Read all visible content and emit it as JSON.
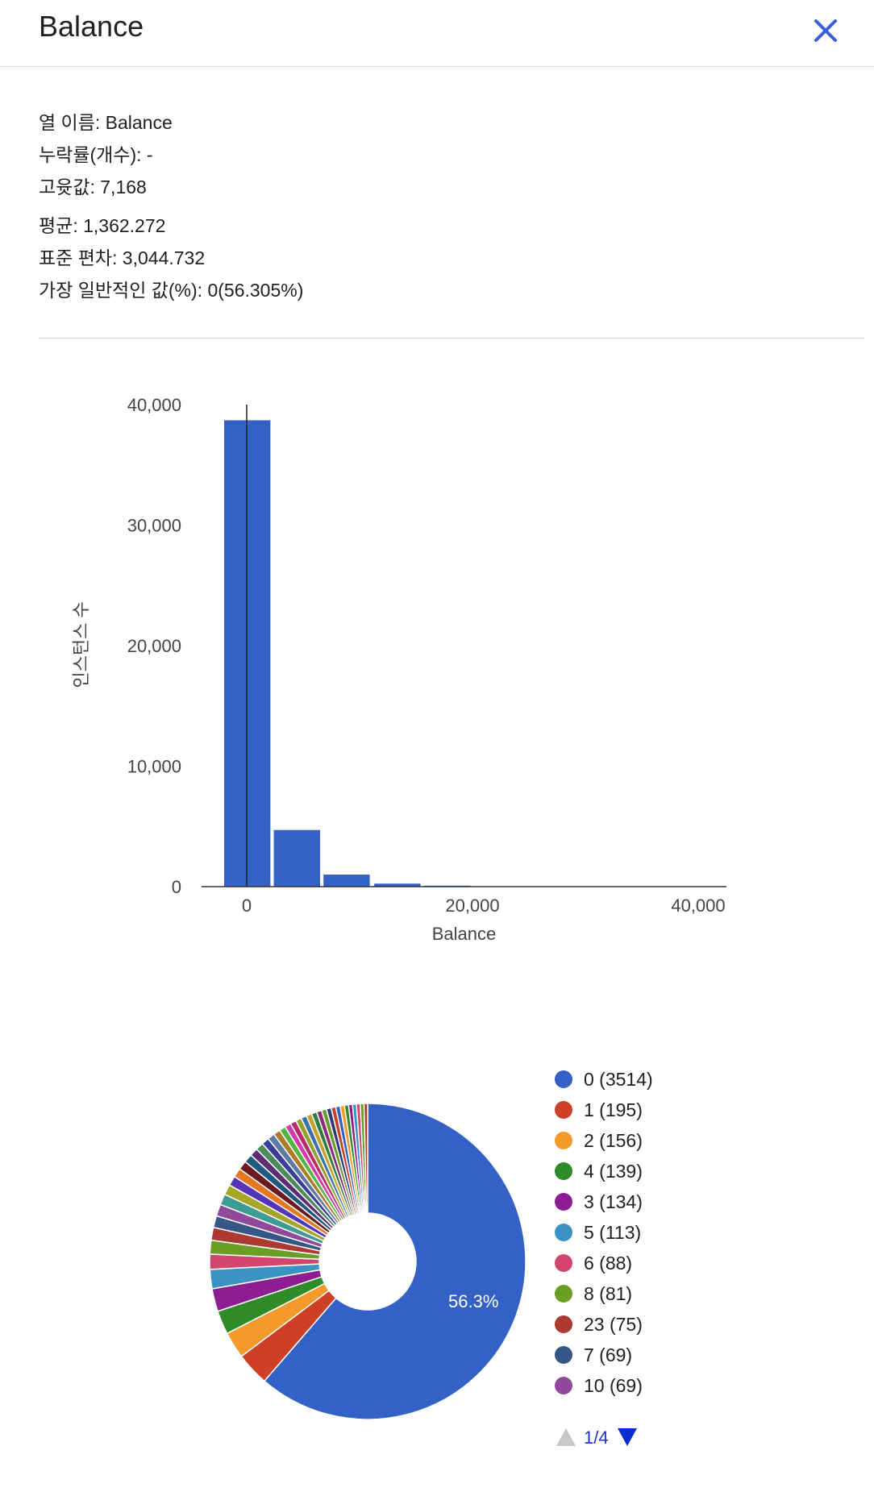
{
  "header": {
    "title": "Balance"
  },
  "stats": [
    "열 이름: Balance",
    "누락률(개수): -",
    "고윳값: 7,168",
    "평균: 1,362.272",
    "표준 편차: 3,044.732",
    "가장 일반적인 값(%): 0(56.305%)"
  ],
  "colors": {
    "bar": "#3461c6",
    "accent": "#3c5ed6",
    "pie_label": "#ffffff"
  },
  "chart_data": [
    {
      "type": "bar",
      "title": "",
      "xlabel": "Balance",
      "ylabel": "인스턴스 수",
      "ylim": [
        0,
        40000
      ],
      "xlim": [
        -4000,
        42500
      ],
      "yticks": [
        "0",
        "10,000",
        "20,000",
        "30,000",
        "40,000"
      ],
      "ytick_values": [
        0,
        10000,
        20000,
        30000,
        40000
      ],
      "xticks": [
        "0",
        "20,000",
        "40,000"
      ],
      "xtick_values": [
        0,
        20000,
        40000
      ],
      "bins": [
        {
          "x0": -2000,
          "x1": 2100,
          "value": 38700
        },
        {
          "x0": 2400,
          "x1": 6500,
          "value": 4700
        },
        {
          "x0": 6800,
          "x1": 10900,
          "value": 1000
        },
        {
          "x0": 11300,
          "x1": 15400,
          "value": 250
        },
        {
          "x0": 15700,
          "x1": 19800,
          "value": 80
        },
        {
          "x0": 20200,
          "x1": 24300,
          "value": 30
        },
        {
          "x0": 24600,
          "x1": 28700,
          "value": 15
        },
        {
          "x0": 29100,
          "x1": 33200,
          "value": 8
        },
        {
          "x0": 33500,
          "x1": 37600,
          "value": 5
        },
        {
          "x0": 38000,
          "x1": 42100,
          "value": 3
        }
      ],
      "grid": false
    },
    {
      "type": "pie",
      "donut": true,
      "slice_label": "56.3%",
      "legend_placement": "right",
      "slices": [
        {
          "label": "0 (3514)",
          "value": 3514,
          "color": "#3461c6"
        },
        {
          "label": "1 (195)",
          "value": 195,
          "color": "#cd4026"
        },
        {
          "label": "2 (156)",
          "value": 156,
          "color": "#f39a2b"
        },
        {
          "label": "4 (139)",
          "value": 139,
          "color": "#2f8a2a"
        },
        {
          "label": "3 (134)",
          "value": 134,
          "color": "#8d1d93"
        },
        {
          "label": "5 (113)",
          "value": 113,
          "color": "#3b93c3"
        },
        {
          "label": "6 (88)",
          "value": 88,
          "color": "#d2456f"
        },
        {
          "label": "8 (81)",
          "value": 81,
          "color": "#6a9e24"
        },
        {
          "label": "23 (75)",
          "value": 75,
          "color": "#ad3a31"
        },
        {
          "label": "7 (69)",
          "value": 69,
          "color": "#355686"
        },
        {
          "label": "10 (69)",
          "value": 69,
          "color": "#8f4a99"
        },
        {
          "value": 64,
          "color": "#3f9c95"
        },
        {
          "value": 60,
          "color": "#a7a629"
        },
        {
          "value": 57,
          "color": "#5634b8"
        },
        {
          "value": 54,
          "color": "#e57622"
        },
        {
          "value": 52,
          "color": "#6c1a22"
        },
        {
          "value": 50,
          "color": "#1f5a80"
        },
        {
          "value": 48,
          "color": "#5e2d75"
        },
        {
          "value": 46,
          "color": "#4b8c5a"
        },
        {
          "value": 44,
          "color": "#3c3f99"
        },
        {
          "value": 42,
          "color": "#5e7aa6"
        },
        {
          "value": 40,
          "color": "#ac7c29"
        },
        {
          "value": 38,
          "color": "#56b548"
        },
        {
          "value": 36,
          "color": "#d63aa6"
        },
        {
          "value": 35,
          "color": "#b72b6b"
        },
        {
          "value": 34,
          "color": "#96a02a"
        },
        {
          "value": 33,
          "color": "#3c72a8"
        },
        {
          "value": 32,
          "color": "#c4a22c"
        },
        {
          "value": 31,
          "color": "#2c7f3e"
        },
        {
          "value": 30,
          "color": "#8c2c76"
        },
        {
          "value": 29,
          "color": "#6e9a2b"
        },
        {
          "value": 28,
          "color": "#2b3c7c"
        },
        {
          "value": 27,
          "color": "#cd4026"
        },
        {
          "value": 26,
          "color": "#3461c6"
        },
        {
          "value": 25,
          "color": "#f39a2b"
        },
        {
          "value": 24,
          "color": "#2f8a2a"
        },
        {
          "value": 23,
          "color": "#8d1d93"
        },
        {
          "value": 23,
          "color": "#3b93c3"
        },
        {
          "value": 22,
          "color": "#d2456f"
        },
        {
          "value": 22,
          "color": "#6a9e24"
        },
        {
          "value": 21,
          "color": "#ad3a31"
        }
      ]
    }
  ],
  "pager": {
    "label": "1/4"
  }
}
